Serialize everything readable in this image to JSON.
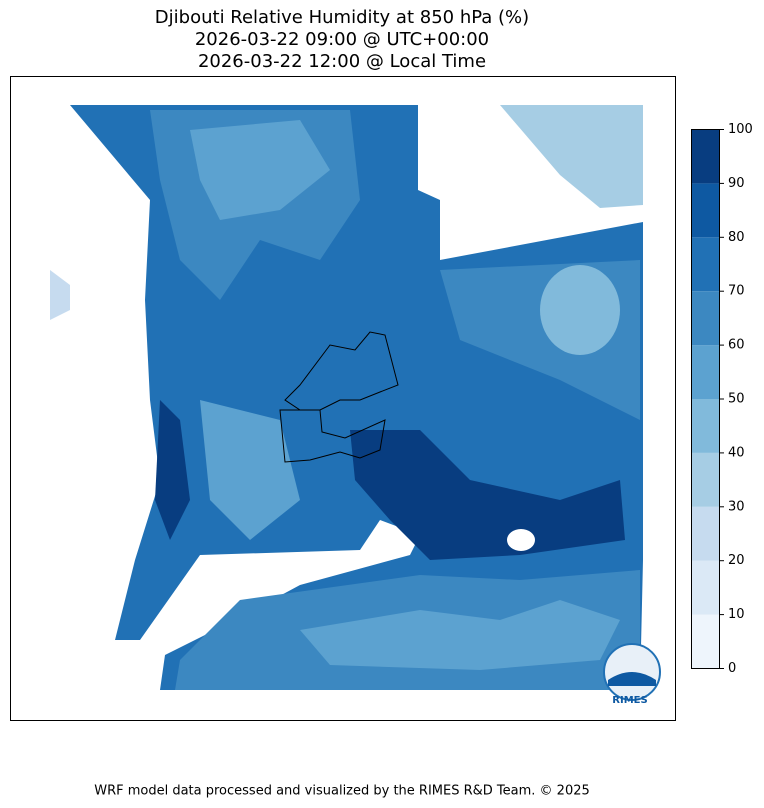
{
  "title": [
    "Djibouti Relative Humidity at 850 hPa (%)",
    "2026-03-22 09:00 @ UTC+00:00",
    "2026-03-22 12:00 @ Local Time"
  ],
  "colorbar": {
    "ticks": [
      0,
      10,
      20,
      30,
      40,
      50,
      60,
      70,
      80,
      90,
      100
    ],
    "colors": [
      "#eef5fc",
      "#dbe9f6",
      "#c6dbef",
      "#a6cde4",
      "#81badb",
      "#5ca2d0",
      "#3c88c1",
      "#2171b5",
      "#0e59a2",
      "#083d80"
    ]
  },
  "logo": "RIMES",
  "footer": "WRF model data processed and visualized by the RIMES R&D Team. © 2025"
}
